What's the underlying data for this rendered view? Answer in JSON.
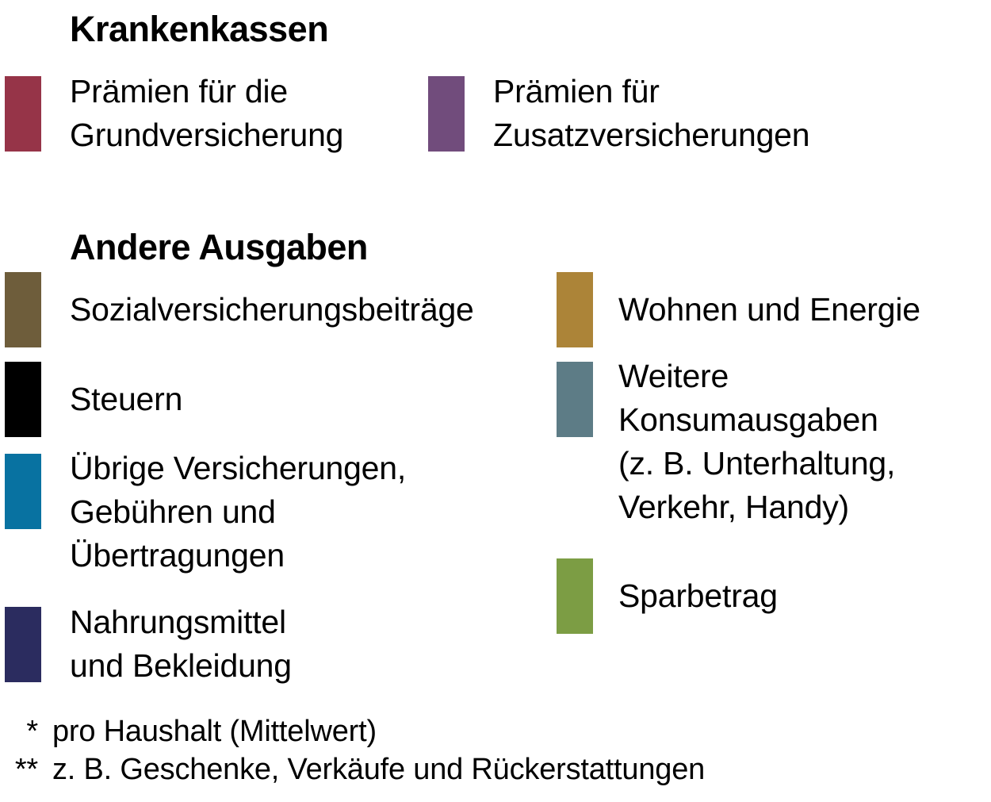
{
  "chart_data": {
    "type": "legend",
    "legend_position": "standalone",
    "groups": [
      {
        "title": "Krankenkassen",
        "entries": [
          {
            "label": "Prämien für die\nGrundversicherung",
            "color": "#963448"
          },
          {
            "label": "Prämien für\nZusatzversicherungen",
            "color": "#714C7C"
          }
        ]
      },
      {
        "title": "Andere Ausgaben",
        "entries_left": [
          {
            "label": "Sozialversicherungsbeiträge",
            "color": "#6E5D3B"
          },
          {
            "label": "Steuern",
            "color": "#000000"
          },
          {
            "label": "Übrige Versicherungen,\nGebühren und\nÜbertragungen",
            "color": "#0872A1"
          },
          {
            "label": "Nahrungsmittel\nund Bekleidung",
            "color": "#2B2C5F"
          }
        ],
        "entries_right": [
          {
            "label": "Wohnen und Energie",
            "color": "#AC8438"
          },
          {
            "label": "Weitere\nKonsumausgaben\n(z. B. Unterhaltung,\nVerkehr, Handy)",
            "color": "#5D7C86"
          },
          {
            "label": "Sparbetrag",
            "color": "#7C9D44"
          }
        ]
      }
    ],
    "footnotes": [
      {
        "marker": "*",
        "text": "pro Haushalt (Mittelwert)"
      },
      {
        "marker": "**",
        "text": "z. B. Geschenke, Verkäufe und Rückerstattungen"
      }
    ]
  }
}
